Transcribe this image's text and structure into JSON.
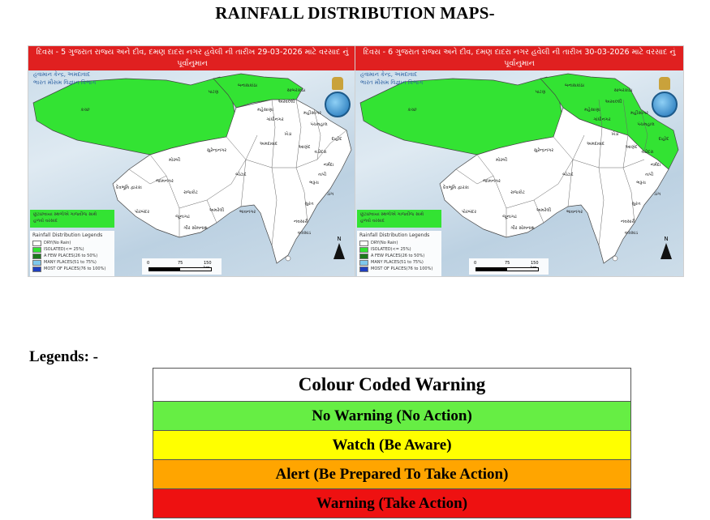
{
  "page": {
    "title": "RAINFALL DISTRIBUTION MAPS-"
  },
  "maps": [
    {
      "header": "દિવસ - 5 ગુજરાત રાજ્ય અને દીવ, દમણ દાદરા નગર હવેલી ની તારીખ 29-03-2026 માટે વરસાદ નું પૂર્વાનુમાન",
      "org_line1": "હવામાન કેન્દ્ર, અમદાવાદ",
      "org_line2": "ભારત મૌસમ વિજ્ઞાન વિભાગ",
      "green_box_line1": "છૂટાછવાયા સ્થળોએ ગાજવીજ સાથે",
      "green_box_line2": "હળવો વરસાદ",
      "legend_title": "Rainfall Distribution Legends",
      "legend_items": [
        {
          "label": "DRY(No Rain)",
          "color": "#ffffff"
        },
        {
          "label": "ISOLATED(<= 25%)",
          "color": "#33e333"
        },
        {
          "label": "A FEW PLACES(26 to 50%)",
          "color": "#1e7a1e"
        },
        {
          "label": "MANY PLACES(51 to 75%)",
          "color": "#7ec8ec"
        },
        {
          "label": "MOST OF PLACES(76 to 100%)",
          "color": "#1f3fbf"
        }
      ],
      "scale": {
        "t0": "0",
        "t1": "75",
        "t2": "150 km"
      },
      "north": "N",
      "districts": [
        "કચ્છ",
        "બનાસકાંઠા",
        "પાટણ",
        "સાબરકાંઠા",
        "મહેસાણા",
        "મોરબી",
        "સુરેન્દ્રનગર",
        "અમદાવાદ",
        "દેવભૂમિ દ્વારકા",
        "જામનગર",
        "રાજકોટ",
        "બોટાદ",
        "ભાવનગર",
        "અમરેલી",
        "જૂનાગઢ",
        "પોરબંદર",
        "ગીર સોમનાથ",
        "આણંદ",
        "ખેડા",
        "વડોદરા",
        "ભરૂચ",
        "સુરત",
        "નવસારી",
        "વલસાડ",
        "ડાંગ",
        "તાપી",
        "નર્મદા",
        "દાહોદ",
        "પંચમહાલ",
        "મહીસાગર",
        "અરવલ્લી",
        "ગાંધીનગર"
      ]
    },
    {
      "header": "દિવસ - 6 ગુજરાત રાજ્ય અને દીવ, દમણ દાદરા નગર હવેલી ની તારીખ 30-03-2026 માટે વરસાદ નું પૂર્વાનુમાન",
      "org_line1": "હવામાન કેન્દ્ર, અમદાવાદ",
      "org_line2": "ભારત મૌસમ વિજ્ઞાન વિભાગ",
      "green_box_line1": "છૂટાછવાયા સ્થળોએ ગાજવીજ સાથે",
      "green_box_line2": "હળવો વરસાદ",
      "legend_title": "Rainfall Distribution Legends",
      "legend_items": [
        {
          "label": "DRY(No Rain)",
          "color": "#ffffff"
        },
        {
          "label": "ISOLATED(<= 25%)",
          "color": "#33e333"
        },
        {
          "label": "A FEW PLACES(26 to 50%)",
          "color": "#1e7a1e"
        },
        {
          "label": "MANY PLACES(51 to 75%)",
          "color": "#7ec8ec"
        },
        {
          "label": "MOST OF PLACES(76 to 100%)",
          "color": "#1f3fbf"
        }
      ],
      "scale": {
        "t0": "0",
        "t1": "75",
        "t2": "150 km"
      },
      "north": "N",
      "districts": [
        "કચ્છ",
        "બનાસકાંઠા",
        "પાટણ",
        "સાબરકાંઠા",
        "મહેસાણા",
        "મોરબી",
        "સુરેન્દ્રનગર",
        "અમદાવાદ",
        "દેવભૂમિ દ્વારકા",
        "જામનગર",
        "રાજકોટ",
        "બોટાદ",
        "ભાવનગર",
        "અમરેલી",
        "જૂનાગઢ",
        "પોરબંદર",
        "ગીર સોમનાથ",
        "આણંદ",
        "ખેડા",
        "વડોદરા",
        "ભરૂચ",
        "સુરત",
        "નવસારી",
        "વલસાડ",
        "ડાંગ",
        "તાપી",
        "નર્મદા",
        "દાહોદ",
        "પંચમહાલ",
        "મહીસાગર",
        "અરવલ્લી",
        "ગાંધીનગર"
      ]
    }
  ],
  "legend": {
    "label": "Legends: -",
    "table_title": "Colour Coded Warning",
    "rows": [
      {
        "label": "No Warning (No Action)",
        "color": "#66ee44"
      },
      {
        "label": "Watch (Be Aware)",
        "color": "#ffff00"
      },
      {
        "label": "Alert (Be Prepared To Take Action)",
        "color": "#ffa500"
      },
      {
        "label": "Warning (Take Action)",
        "color": "#ee1111"
      }
    ]
  },
  "colors": {
    "map_header_bg": "#e02020",
    "green_area": "#33e333",
    "map_bg": "#c9dbe9"
  }
}
